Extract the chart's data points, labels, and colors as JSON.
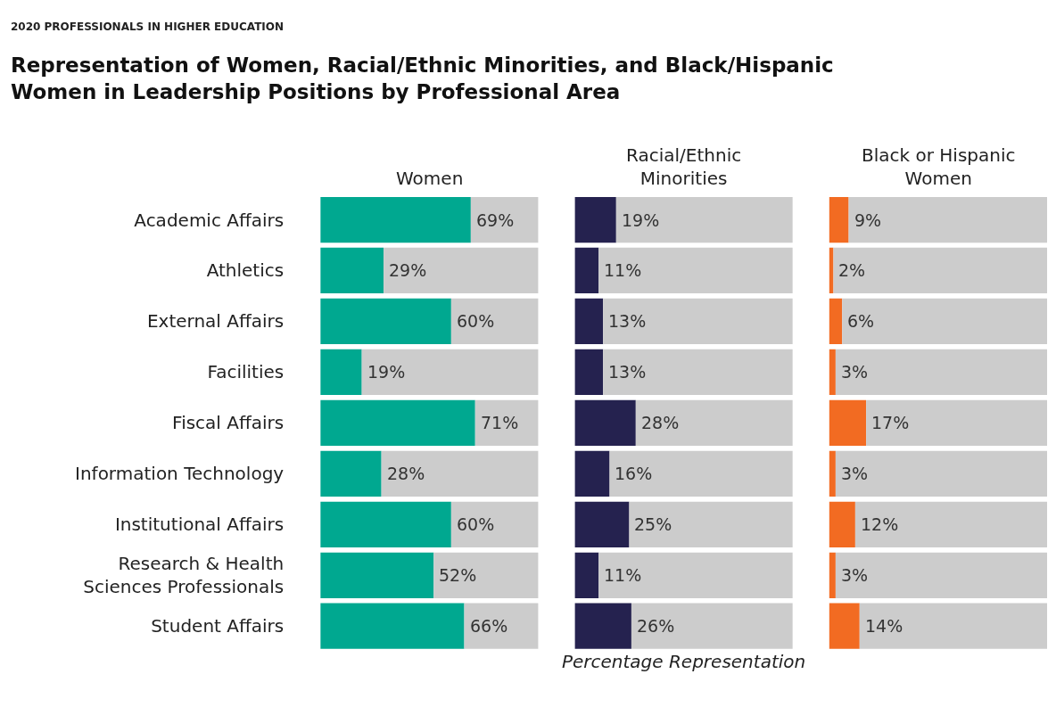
{
  "chart_data": [
    {
      "type": "bar",
      "orientation": "horizontal",
      "stacked": true,
      "title": "Representation of Women, Racial/Ethnic Minorities, and Black/Hispanic\nWomen in Leadership Positions by Professional Area",
      "subtitle": "2020 PROFESSIONALS IN HIGHER EDUCATION",
      "categories": [
        "Academic Affairs",
        "Athletics",
        "External Affairs",
        "Facilities",
        "Fiscal Affairs",
        "Information Technology",
        "Institutional Affairs",
        "Research & Health\nSciences Professionals",
        "Student Affairs"
      ],
      "xlim": [
        0,
        100
      ],
      "tick_labels": "y",
      "legend": false,
      "series": [
        {
          "name": "Women",
          "color": "#00a890",
          "values": [
            69,
            29,
            60,
            19,
            71,
            28,
            60,
            52,
            66
          ],
          "value_labels": [
            "69%",
            "29%",
            "60%",
            "19%",
            "71%",
            "28%",
            "60%",
            "52%",
            "66%"
          ]
        },
        {
          "color": "#cccccc",
          "values": [
            31,
            71,
            40,
            81,
            29,
            72,
            40,
            48,
            34
          ]
        }
      ]
    },
    {
      "type": "bar",
      "orientation": "horizontal",
      "stacked": true,
      "xlabel": "Percentage Representation",
      "categories": [
        null,
        null,
        null,
        null,
        null,
        null,
        null,
        null,
        null
      ],
      "xlim": [
        0,
        100
      ],
      "tick_labels": false,
      "legend": false,
      "series": [
        {
          "name": "Racial/Ethnic\nMinorities",
          "color": "#25224f",
          "values": [
            19,
            11,
            13,
            13,
            28,
            16,
            25,
            11,
            26
          ],
          "value_labels": [
            "19%",
            "11%",
            "13%",
            "13%",
            "28%",
            "16%",
            "25%",
            "11%",
            "26%"
          ]
        },
        {
          "color": "#cccccc",
          "values": [
            81,
            89,
            87,
            87,
            72,
            84,
            75,
            89,
            74
          ]
        }
      ]
    },
    {
      "type": "bar",
      "orientation": "horizontal",
      "stacked": true,
      "categories": [
        null,
        null,
        null,
        null,
        null,
        null,
        null,
        null,
        null
      ],
      "xlim": [
        0,
        100
      ],
      "tick_labels": false,
      "legend": false,
      "series": [
        {
          "name": "Black or Hispanic\nWomen",
          "color": "#f26b22",
          "values": [
            9,
            2,
            6,
            3,
            17,
            3,
            12,
            3,
            14
          ],
          "value_labels": [
            "9%",
            "2%",
            "6%",
            "3%",
            "17%",
            "3%",
            "12%",
            "3%",
            "14%"
          ]
        },
        {
          "color": "#cccccc",
          "values": [
            91,
            98,
            94,
            97,
            83,
            97,
            88,
            97,
            86
          ]
        }
      ]
    }
  ]
}
